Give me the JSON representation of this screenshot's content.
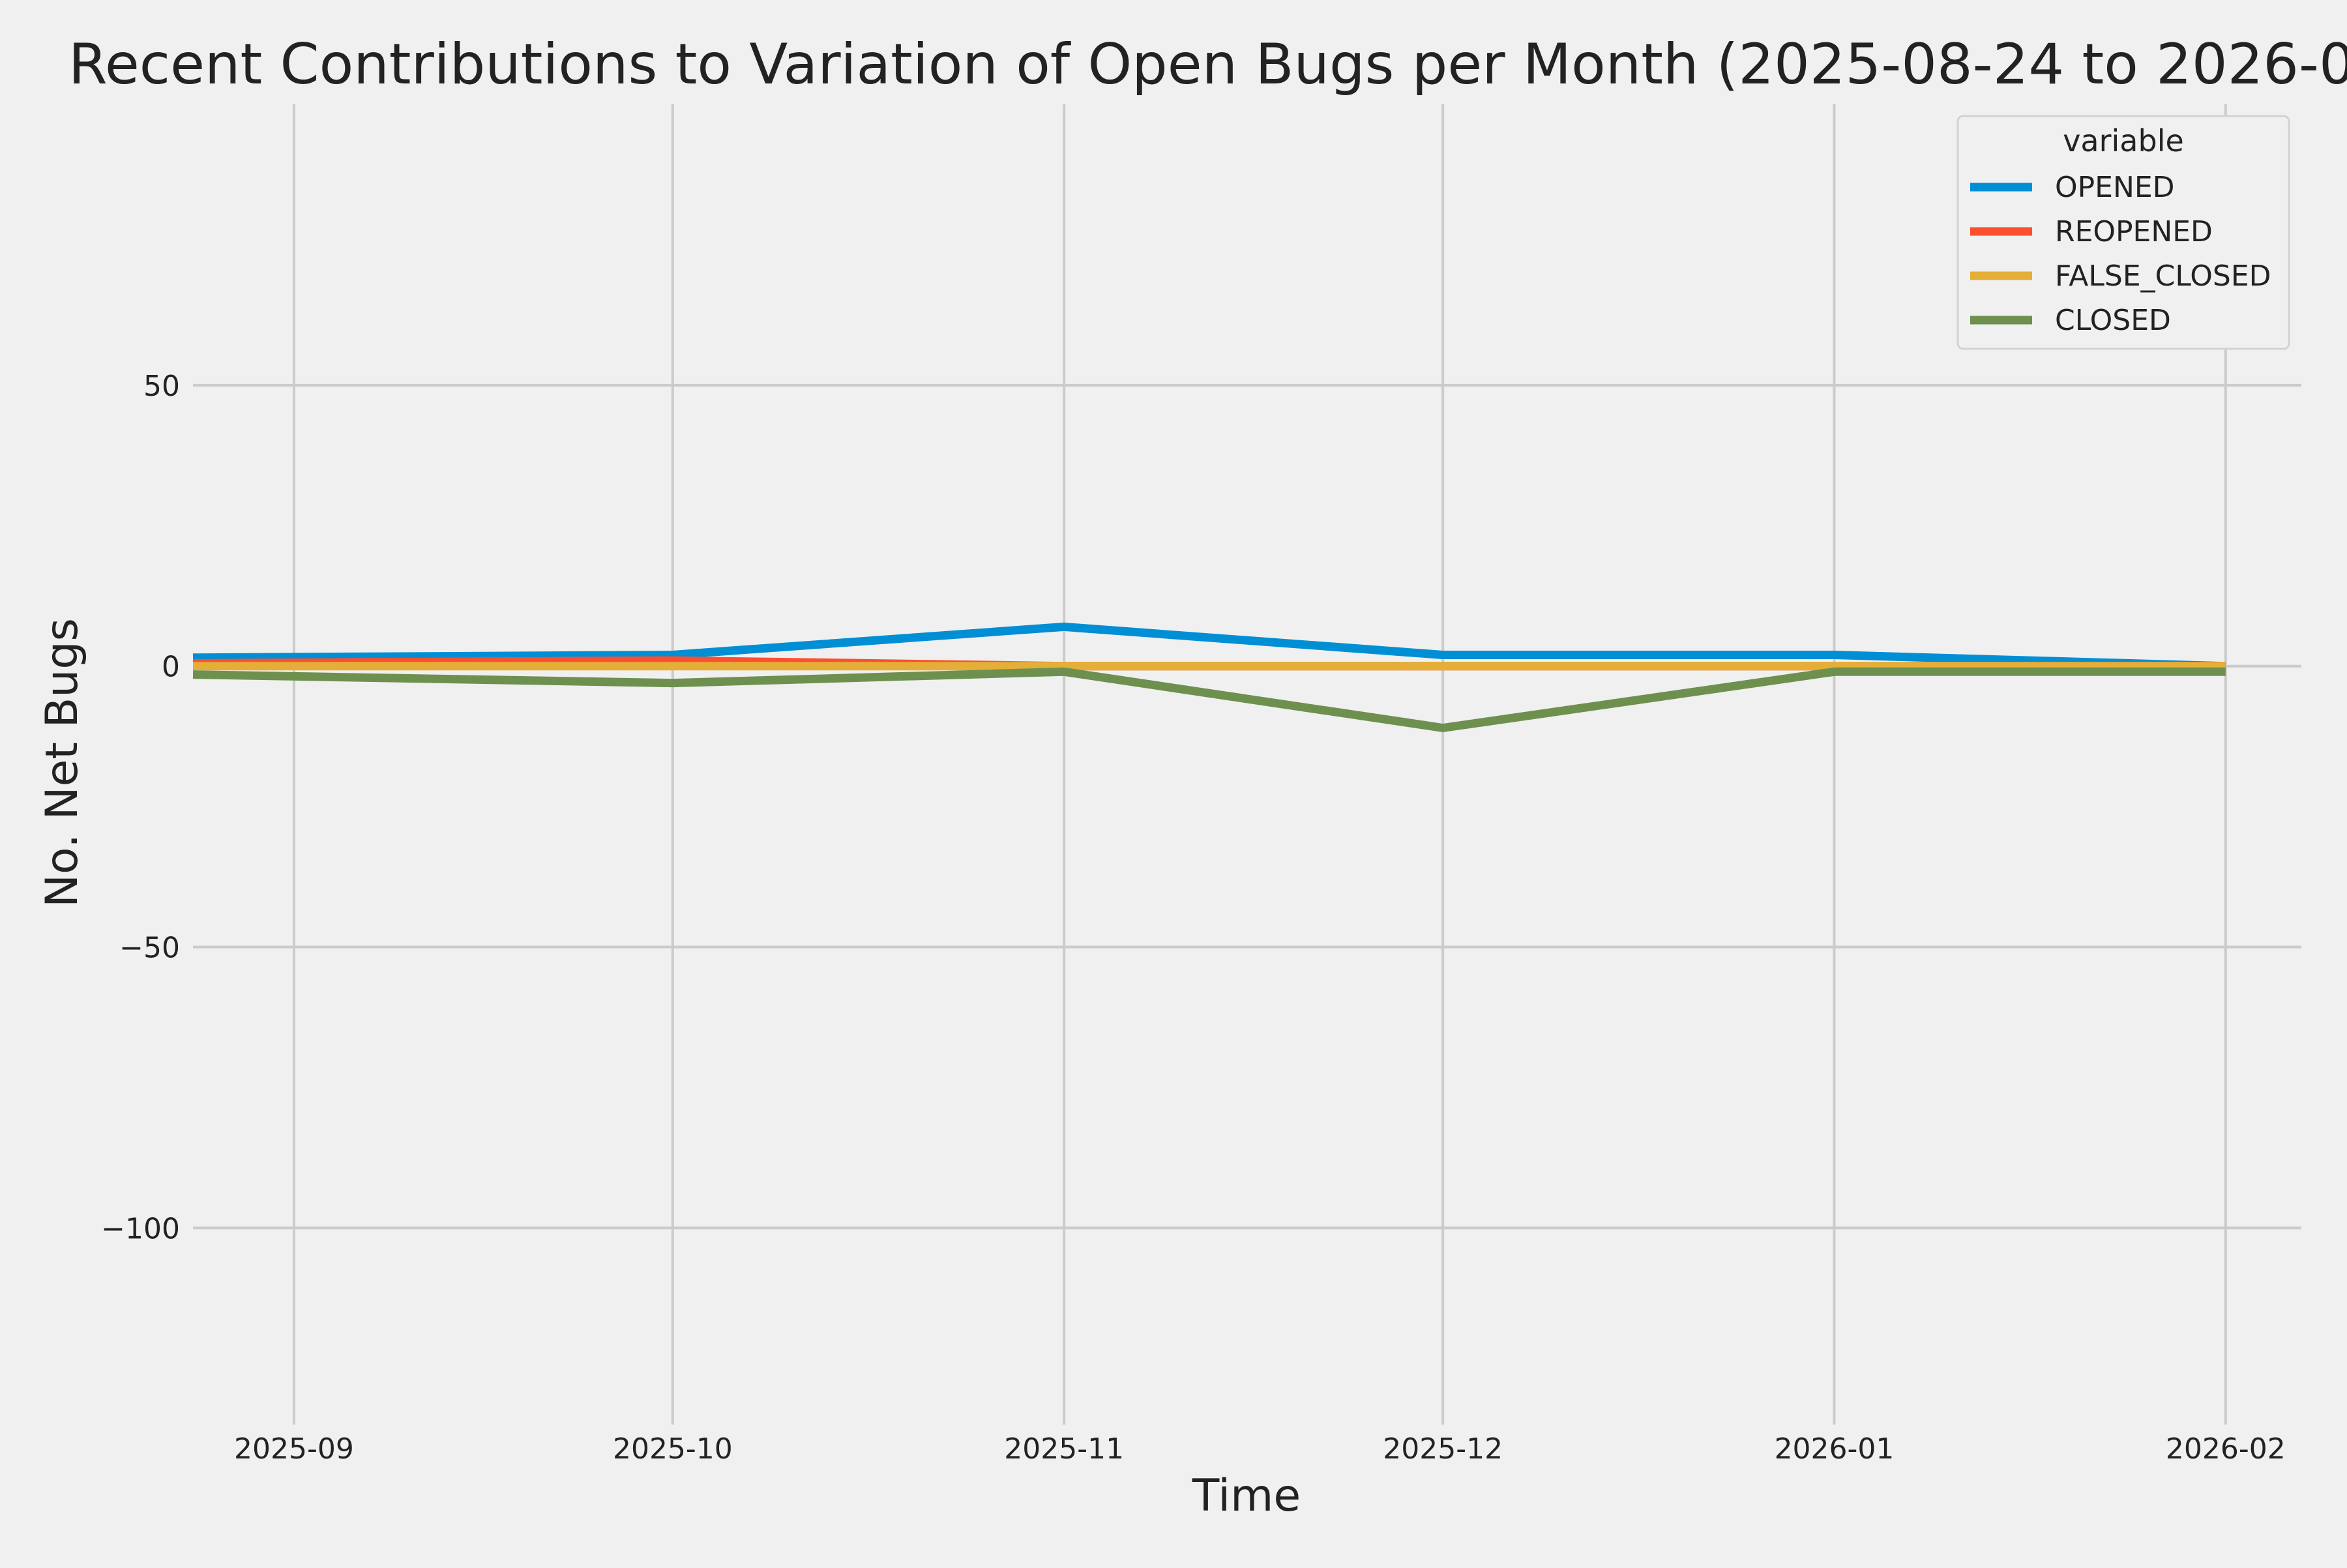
{
  "chart_data": {
    "type": "line",
    "title": "Recent Contributions to Variation of Open Bugs per Month (2025-08-24 to 2026-02-0",
    "xlabel": "Time",
    "ylabel": "No. Net Bugs",
    "x_ticks": [
      "2025-09",
      "2025-10",
      "2025-11",
      "2025-12",
      "2026-01",
      "2026-02"
    ],
    "x_range": [
      "2025-08-24",
      "2026-02-07"
    ],
    "y_ticks": [
      50,
      0,
      -50,
      -100
    ],
    "y_tick_labels": [
      "50",
      "0",
      "−50",
      "−100"
    ],
    "ylim": [
      -135,
      100
    ],
    "grid": true,
    "legend": {
      "title": "variable",
      "placement": "top-right"
    },
    "x": [
      "2025-08-24",
      "2025-10-01",
      "2025-11-01",
      "2025-12-01",
      "2026-01-01",
      "2026-02-01"
    ],
    "series": [
      {
        "name": "OPENED",
        "color": "#008fd5",
        "values": [
          1.5,
          2,
          7,
          2,
          2,
          0
        ]
      },
      {
        "name": "REOPENED",
        "color": "#fc4f30",
        "values": [
          0.5,
          1,
          0,
          0,
          0,
          0
        ]
      },
      {
        "name": "FALSE_CLOSED",
        "color": "#e5ae38",
        "values": [
          0,
          0,
          0,
          0,
          0,
          0
        ]
      },
      {
        "name": "CLOSED",
        "color": "#6d904f",
        "values": [
          -1.5,
          -3,
          -1,
          -11,
          -1,
          -1
        ]
      }
    ]
  }
}
